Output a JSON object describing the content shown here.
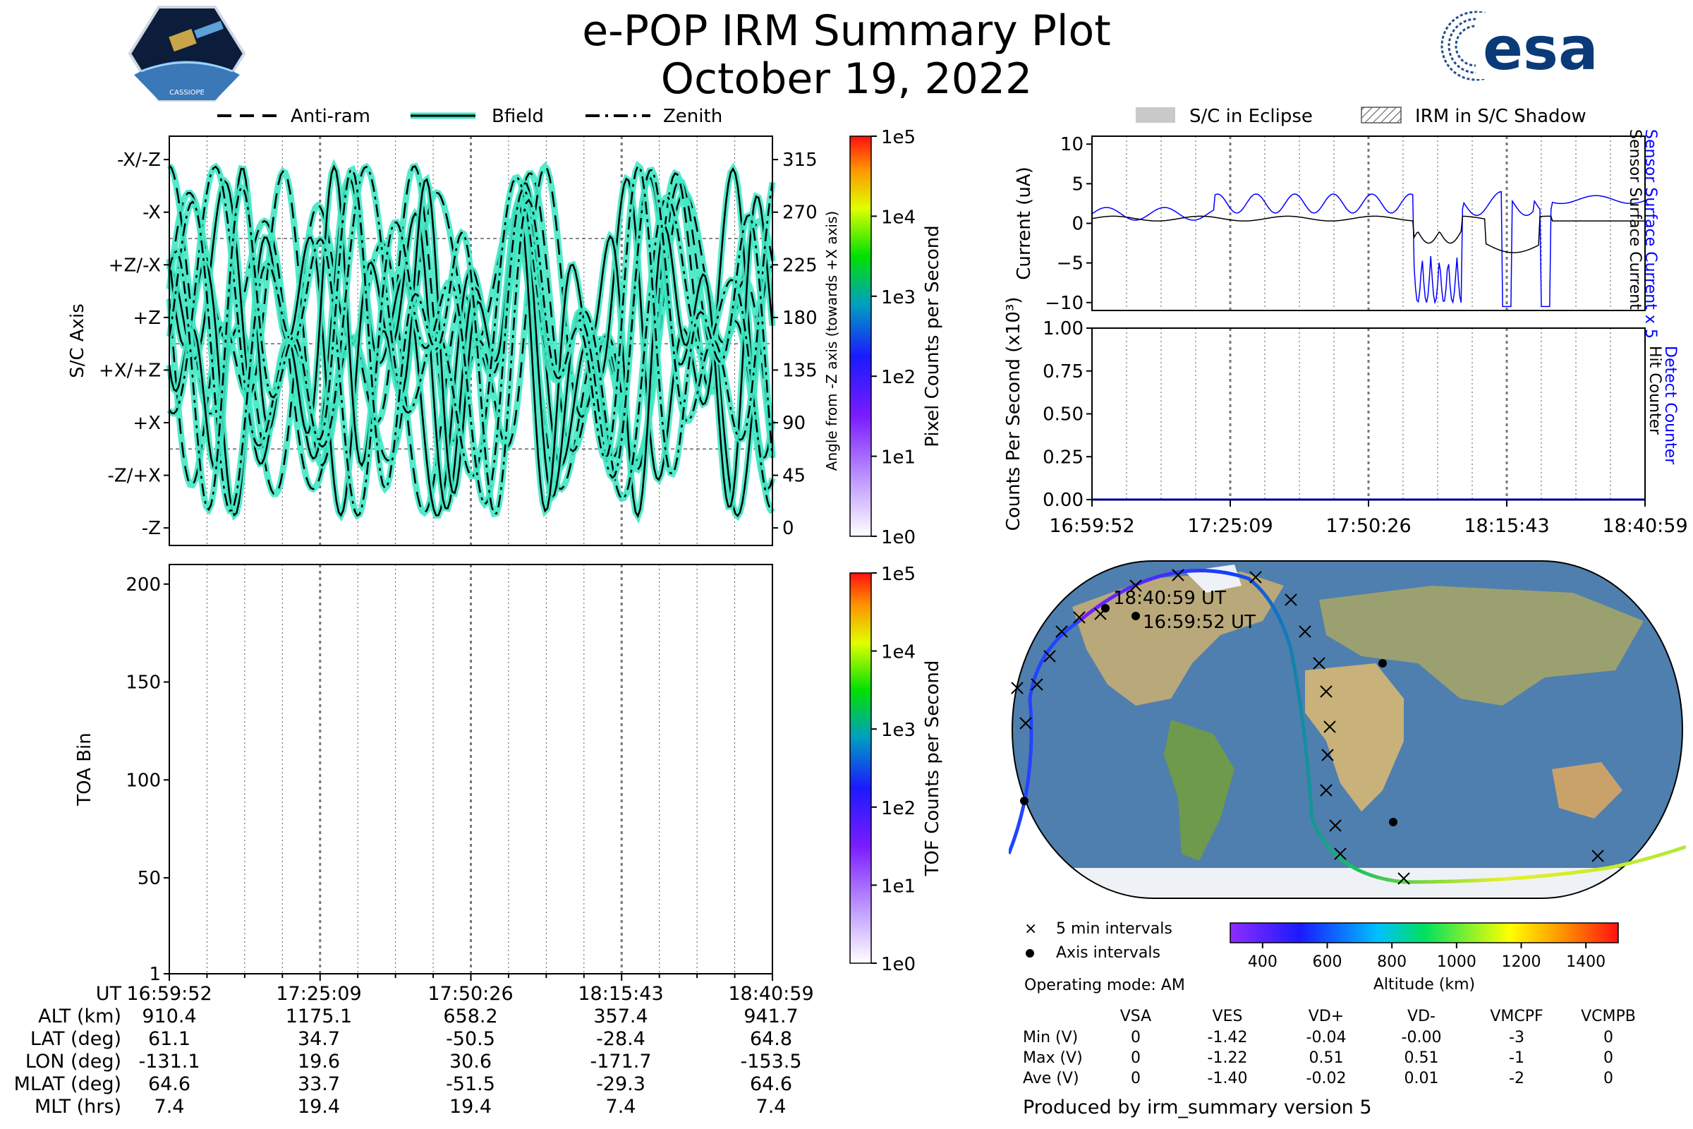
{
  "title": "e-POP IRM Summary Plot",
  "subtitle": "October 19, 2022",
  "logos": {
    "cassiope": "CASSIOPE",
    "esa": "esa"
  },
  "legend_angles": [
    "Anti-ram",
    "Bfield",
    "Zenith"
  ],
  "legend_eclipse": [
    "S/C in Eclipse",
    "IRM in S/C Shadow"
  ],
  "time_ticks": [
    "16:59:52",
    "17:25:09",
    "17:50:26",
    "18:15:43",
    "18:40:59"
  ],
  "colors": {
    "accent_cyan": "#3fe8c4",
    "blue_trace": "#0000ff",
    "black_trace": "#000000"
  },
  "chart_data": [
    {
      "type": "line",
      "name": "axis-angle-panel",
      "ylabel": "S/C Axis",
      "y2label": "Angle from -Z axis (towards +X axis)",
      "left_ticks": [
        "-X/-Z",
        "-X",
        "+Z/-X",
        "+Z",
        "+X/+Z",
        "+X",
        "-Z/+X",
        "-Z"
      ],
      "right_ticks": [
        "315",
        "270",
        "225",
        "180",
        "135",
        "90",
        "45",
        "0"
      ],
      "ylim": [
        -15,
        335
      ],
      "series": [
        {
          "name": "Anti-ram"
        },
        {
          "name": "Bfield"
        },
        {
          "name": "Zenith"
        }
      ],
      "colorbar": {
        "label": "Pixel Counts per Second",
        "ticks": [
          "1e5",
          "1e4",
          "1e3",
          "1e2",
          "1e1",
          "1e0"
        ]
      }
    },
    {
      "type": "heatmap",
      "name": "toa-panel",
      "ylabel": "TOA Bin",
      "yticks": [
        "200",
        "150",
        "100",
        "50",
        "1"
      ],
      "ylim": [
        1,
        210
      ],
      "colorbar": {
        "label": "TOF Counts per Second",
        "ticks": [
          "1e5",
          "1e4",
          "1e3",
          "1e2",
          "1e1",
          "1e0"
        ]
      }
    },
    {
      "type": "line",
      "name": "current-panel",
      "ylabel": "Current (uA)",
      "yticks": [
        "10",
        "5",
        "0",
        "−5",
        "−10"
      ],
      "ylim": [
        -11,
        11
      ],
      "series": [
        {
          "name": "Sensor Surface Current x 5",
          "color": "#0000ff"
        },
        {
          "name": "Sensor Surface Current",
          "color": "#000000"
        }
      ]
    },
    {
      "type": "line",
      "name": "counts-panel",
      "ylabel": "Counts Per Second (x10³)",
      "yticks": [
        "1.00",
        "0.75",
        "0.50",
        "0.25",
        "0.00"
      ],
      "ylim": [
        0,
        1
      ],
      "series": [
        {
          "name": "Detect Counter",
          "color": "#0000ff",
          "values": [
            0,
            0
          ]
        },
        {
          "name": "Hit Counter",
          "color": "#000000",
          "values": [
            0,
            0
          ]
        }
      ]
    }
  ],
  "orbit_table": {
    "rows": [
      {
        "label": "UT",
        "values": [
          "16:59:52",
          "17:25:09",
          "17:50:26",
          "18:15:43",
          "18:40:59"
        ]
      },
      {
        "label": "ALT (km)",
        "values": [
          "910.4",
          "1175.1",
          "658.2",
          "357.4",
          "941.7"
        ]
      },
      {
        "label": "LAT (deg)",
        "values": [
          "61.1",
          "34.7",
          "-50.5",
          "-28.4",
          "64.8"
        ]
      },
      {
        "label": "LON (deg)",
        "values": [
          "-131.1",
          "19.6",
          "30.6",
          "-171.7",
          "-153.5"
        ]
      },
      {
        "label": "MLAT (deg)",
        "values": [
          "64.6",
          "33.7",
          "-51.5",
          "-29.3",
          "64.6"
        ]
      },
      {
        "label": "MLT (hrs)",
        "values": [
          "7.4",
          "19.4",
          "19.4",
          "7.4",
          "7.4"
        ]
      }
    ]
  },
  "map": {
    "end_label": "18:40:59 UT",
    "start_label": "16:59:52 UT",
    "legend": [
      "5 min intervals",
      "Axis intervals"
    ],
    "operating_mode": "Operating mode: AM",
    "altitude_bar": {
      "label": "Altitude (km)",
      "ticks": [
        "400",
        "600",
        "800",
        "1000",
        "1200",
        "1400"
      ],
      "range": [
        300,
        1500
      ]
    }
  },
  "voltage_table": {
    "columns": [
      "VSA",
      "VES",
      "VD+",
      "VD-",
      "VMCPF",
      "VCMPB"
    ],
    "rows": [
      {
        "label": "Min (V)",
        "values": [
          "0",
          "-1.42",
          "-0.04",
          "-0.00",
          "-3",
          "0"
        ]
      },
      {
        "label": "Max (V)",
        "values": [
          "0",
          "-1.22",
          "0.51",
          "0.51",
          "-1",
          "0"
        ]
      },
      {
        "label": "Ave (V)",
        "values": [
          "0",
          "-1.40",
          "-0.02",
          "0.01",
          "-2",
          "0"
        ]
      }
    ]
  },
  "footer": "Produced by irm_summary version 5"
}
